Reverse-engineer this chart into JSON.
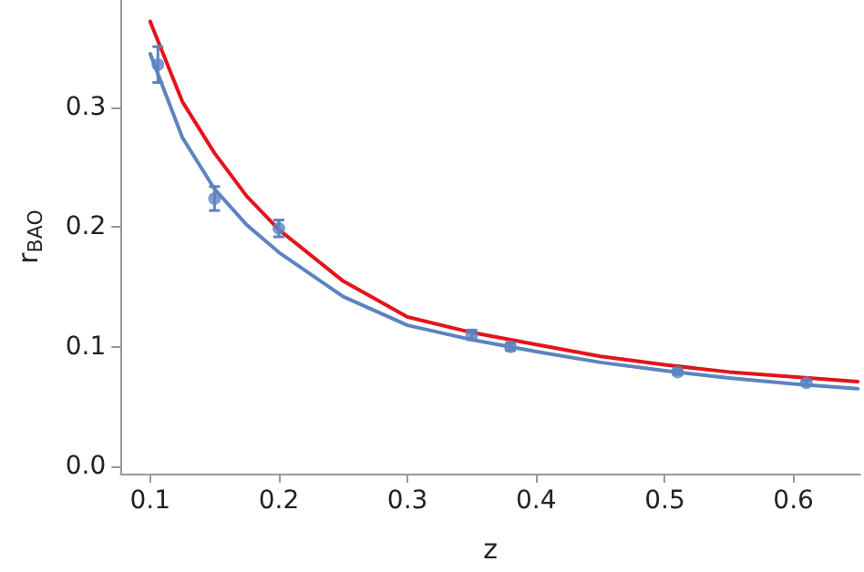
{
  "chart_data": {
    "type": "line",
    "xlabel": "z",
    "ylabel": "r$_{BAO}$",
    "xlim": [
      0.077,
      0.652
    ],
    "xticks": [
      0.1,
      0.2,
      0.3,
      0.4,
      0.5,
      0.6
    ],
    "ylim": [
      -0.006,
      0.39
    ],
    "yticks": [
      {
        "value": 0,
        "label": "0.0"
      },
      0.1,
      0.2,
      0.3
    ],
    "grid": false,
    "line_style": "solid",
    "marker": "none",
    "series": [
      {
        "color": "#e3141b",
        "x": [
          0.1,
          0.125,
          0.15,
          0.175,
          0.2,
          0.25,
          0.3,
          0.35,
          0.4,
          0.45,
          0.5,
          0.55,
          0.6,
          0.65
        ],
        "values": [
          0.372,
          0.305,
          0.262,
          0.226,
          0.198,
          0.155,
          0.125,
          0.112,
          0.102,
          0.092,
          0.085,
          0.079,
          0.075,
          0.071
        ]
      },
      {
        "color": "#5b84c0",
        "x": [
          0.1,
          0.125,
          0.15,
          0.175,
          0.2,
          0.25,
          0.3,
          0.35,
          0.4,
          0.45,
          0.5,
          0.55,
          0.6,
          0.65
        ],
        "values": [
          0.345,
          0.275,
          0.232,
          0.202,
          0.179,
          0.142,
          0.118,
          0.106,
          0.096,
          0.087,
          0.08,
          0.074,
          0.069,
          0.065
        ]
      },
      {
        "type": "scatter",
        "color": "#5b84c0",
        "marker": "circle",
        "x": [
          0.106,
          0.15,
          0.2,
          0.35,
          0.38,
          0.51,
          0.61
        ],
        "values": [
          0.336,
          0.224,
          0.199,
          0.11,
          0.1,
          0.079,
          0.07
        ],
        "errors": [
          0.015,
          0.01,
          0.007,
          0.004,
          0.003,
          0.002,
          0.002
        ]
      }
    ]
  }
}
